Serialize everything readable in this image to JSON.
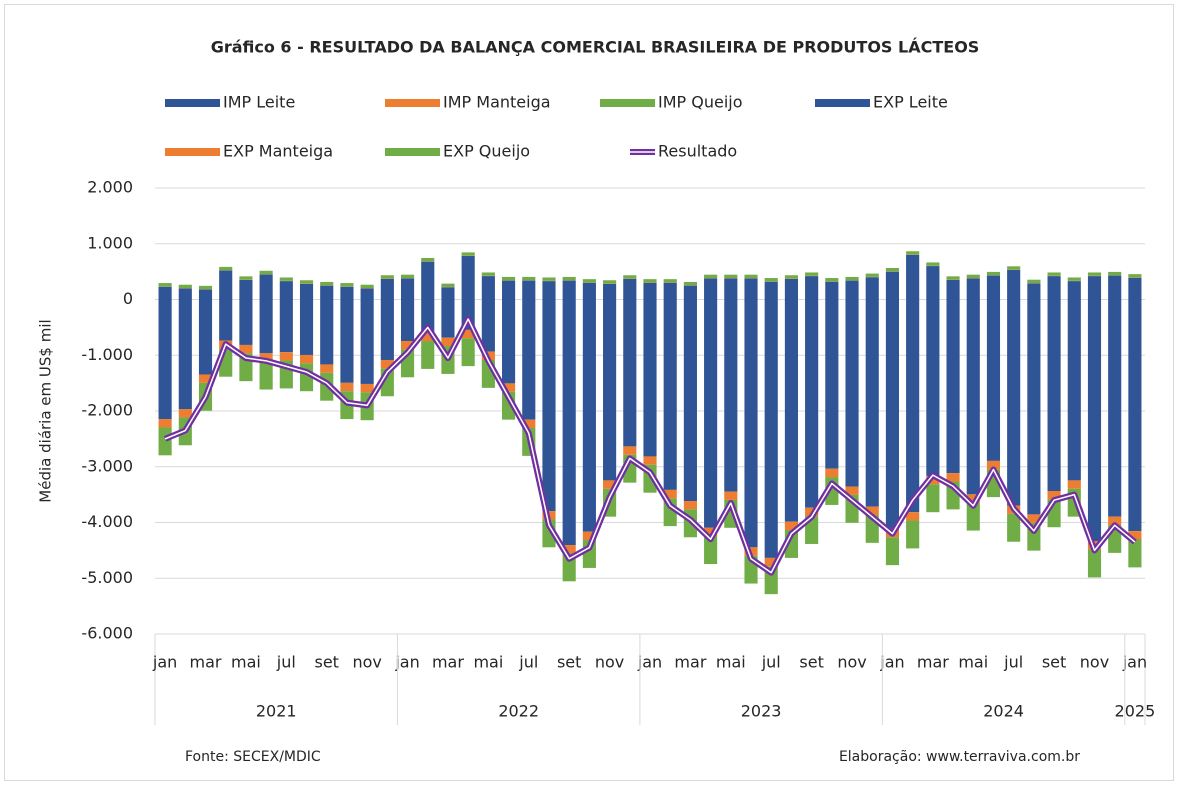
{
  "chart_data": {
    "type": "bar",
    "title": "Gráfico 6 - RESULTADO DA BALANÇA COMERCIAL BRASILEIRA DE PRODUTOS LÁCTEOS",
    "y_label": "Média diária em US$ mil",
    "source": "Fonte: SECEX/MDIC",
    "credit": "Elaboração: www.terraviva.com.br",
    "categories": [
      "jan",
      null,
      "mar",
      null,
      "mai",
      null,
      "jul",
      null,
      "set",
      null,
      "nov",
      null,
      "jan",
      null,
      "mar",
      null,
      "mai",
      null,
      "jul",
      null,
      "set",
      null,
      "nov",
      null,
      "jan",
      null,
      "mar",
      null,
      "mai",
      null,
      "jul",
      null,
      "set",
      null,
      "nov",
      null,
      "jan",
      null,
      "mar",
      null,
      "mai",
      null,
      "jul",
      null,
      "set",
      null,
      "nov",
      null,
      "jan"
    ],
    "years": [
      "2021",
      "2022",
      "2023",
      "2024",
      "2025"
    ],
    "ylim": [
      -6000,
      2000
    ],
    "yticks": [
      {
        "value": 2000,
        "label": "2.000"
      },
      {
        "value": 1000,
        "label": "1.000"
      },
      0,
      {
        "value": -1000,
        "label": "-1.000"
      },
      {
        "value": -2000,
        "label": "-2.000"
      },
      {
        "value": -3000,
        "label": "-3.000"
      },
      {
        "value": -4000,
        "label": "-4.000"
      },
      {
        "value": -5000,
        "label": "-5.000"
      },
      {
        "value": -6000,
        "label": "-6.000"
      }
    ],
    "grid": true,
    "series": [
      {
        "name": "IMP Leite",
        "color": "#2f5597",
        "values": [
          -2145,
          -1965,
          -1345,
          -735,
          -815,
          -965,
          -945,
          -995,
          -1165,
          -1495,
          -1515,
          -1085,
          -745,
          -595,
          -685,
          -545,
          -935,
          -1505,
          -2155,
          -3795,
          -4405,
          -4165,
          -3245,
          -2635,
          -2815,
          -3415,
          -3615,
          -4095,
          -3445,
          -4445,
          -4635,
          -3985,
          -3735,
          -3035,
          -3355,
          -3715,
          -4115,
          -3815,
          -3165,
          -3115,
          -3495,
          -2895,
          -3695,
          -3855,
          -3435,
          -3245,
          -4335,
          -3895,
          -4155
        ]
      },
      {
        "name": "IMP Manteiga",
        "color": "#ed7d31",
        "values": [
          -150,
          -150,
          -150,
          -150,
          -150,
          -150,
          -150,
          -150,
          -150,
          -150,
          -150,
          -150,
          -150,
          -150,
          -150,
          -150,
          -150,
          -150,
          -150,
          -150,
          -150,
          -150,
          -150,
          -150,
          -150,
          -150,
          -150,
          -150,
          -150,
          -150,
          -150,
          -150,
          -150,
          -150,
          -150,
          -150,
          -150,
          -150,
          -150,
          -150,
          -150,
          -150,
          -150,
          -150,
          -150,
          -150,
          -150,
          -150,
          -150
        ]
      },
      {
        "name": "IMP Queijo",
        "color": "#70ad47",
        "values": [
          -500,
          -500,
          -500,
          -500,
          -500,
          -500,
          -500,
          -500,
          -500,
          -500,
          -500,
          -500,
          -500,
          -500,
          -500,
          -500,
          -500,
          -500,
          -500,
          -500,
          -500,
          -500,
          -500,
          -500,
          -500,
          -500,
          -500,
          -500,
          -500,
          -500,
          -500,
          -500,
          -500,
          -500,
          -500,
          -500,
          -500,
          -500,
          -500,
          -500,
          -500,
          -500,
          -500,
          -500,
          -500,
          -500,
          -500,
          -500,
          -500
        ]
      },
      {
        "name": "EXP Leite",
        "color": "#2f5597",
        "values": [
          230,
          200,
          180,
          520,
          350,
          450,
          330,
          280,
          250,
          230,
          200,
          370,
          380,
          680,
          220,
          780,
          420,
          340,
          340,
          330,
          340,
          300,
          280,
          370,
          300,
          300,
          250,
          380,
          380,
          380,
          320,
          370,
          420,
          320,
          340,
          400,
          500,
          800,
          600,
          350,
          380,
          430,
          530,
          290,
          420,
          330,
          420,
          430,
          390
        ]
      },
      {
        "name": "EXP Manteiga",
        "color": "#ed7d31",
        "values": [
          5,
          5,
          5,
          5,
          5,
          5,
          5,
          5,
          5,
          5,
          5,
          5,
          5,
          5,
          5,
          5,
          5,
          5,
          5,
          5,
          5,
          5,
          5,
          5,
          5,
          5,
          5,
          5,
          5,
          5,
          5,
          5,
          5,
          5,
          5,
          5,
          5,
          5,
          5,
          5,
          5,
          5,
          5,
          5,
          5,
          5,
          5,
          5,
          5
        ]
      },
      {
        "name": "EXP Queijo",
        "color": "#70ad47",
        "values": [
          60,
          60,
          60,
          60,
          60,
          60,
          60,
          60,
          60,
          60,
          60,
          60,
          60,
          60,
          60,
          60,
          60,
          60,
          60,
          60,
          60,
          60,
          60,
          60,
          60,
          60,
          60,
          60,
          60,
          60,
          60,
          60,
          60,
          60,
          60,
          60,
          60,
          60,
          60,
          60,
          60,
          60,
          60,
          60,
          60,
          60,
          60,
          60,
          60
        ]
      },
      {
        "name": "Resultado",
        "type": "line",
        "color": "#7030a0",
        "values": [
          -2500,
          -2350,
          -1750,
          -800,
          -1050,
          -1100,
          -1200,
          -1300,
          -1500,
          -1850,
          -1900,
          -1300,
          -950,
          -500,
          -1050,
          -350,
          -1100,
          -1750,
          -2400,
          -4050,
          -4650,
          -4450,
          -3550,
          -2850,
          -3100,
          -3700,
          -3950,
          -4300,
          -3650,
          -4650,
          -4900,
          -4200,
          -3900,
          -3300,
          -3600,
          -3900,
          -4200,
          -3600,
          -3150,
          -3350,
          -3700,
          -3050,
          -3750,
          -4150,
          -3600,
          -3500,
          -4500,
          -4050,
          -4350
        ]
      }
    ]
  }
}
